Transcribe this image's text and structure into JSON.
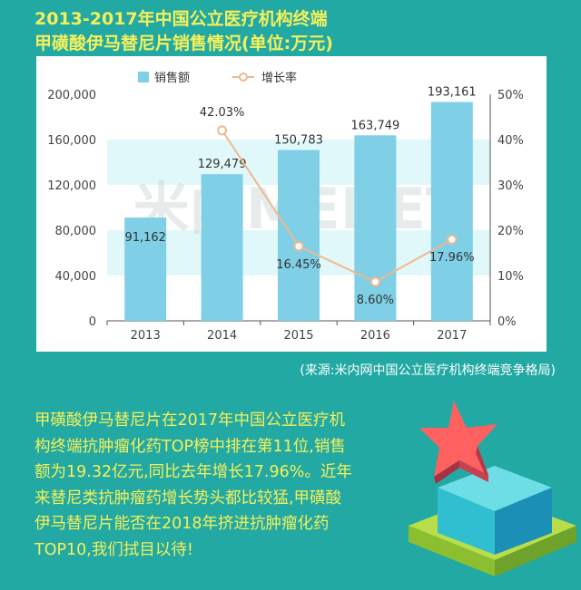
{
  "title": {
    "line1": "2013-2017年中国公立医疗机构终端",
    "line2": "甲磺酸伊马替尼片销售情况(单位:万元)"
  },
  "chart_data": {
    "type": "bar",
    "categories": [
      "2013",
      "2014",
      "2015",
      "2016",
      "2017"
    ],
    "series": [
      {
        "name": "销售额",
        "type": "bar",
        "values": [
          91162,
          129479,
          150783,
          163749,
          193161
        ],
        "labels": [
          "91,162",
          "129,479",
          "150,783",
          "163,749",
          "193,161"
        ],
        "color": "#7fd0e6"
      },
      {
        "name": "增长率",
        "type": "line",
        "axis": "right",
        "values": [
          null,
          42.03,
          16.45,
          8.6,
          17.96
        ],
        "labels": [
          "",
          "42.03%",
          "16.45%",
          "8.60%",
          "17.96%"
        ],
        "color": "#f0b890"
      }
    ],
    "ylim": [
      0,
      200000
    ],
    "yticks": [
      "0",
      "40,000",
      "80,000",
      "120,000",
      "160,000",
      "200,000"
    ],
    "y2lim": [
      0,
      50
    ],
    "y2ticks": [
      "0%",
      "10%",
      "20%",
      "30%",
      "40%",
      "50%"
    ],
    "legend_position": "top-left",
    "watermark": "米内MENET"
  },
  "source": "(来源:米内网中国公立医疗机构终端竞争格局)",
  "paragraph": [
    "甲磺酸伊马替尼片在2017年中国公立医疗机",
    "构终端抗肿瘤化药TOP榜中排在第11位,销售",
    "额为19.32亿元,同比去年增长17.96%。近年",
    "来替尼类抗肿瘤药增长势头都比较猛,甲磺酸",
    "伊马替尼片能否在2018年挤进抗肿瘤化药",
    "TOP10,我们拭目以待!"
  ],
  "colors": {
    "background": "#22a9a4",
    "title": "#f5f05a",
    "band": "#e1f8fa",
    "bar": "#7fd0e6",
    "line": "#f0b890"
  },
  "illustration": {
    "icon": "star-on-cube-icon"
  }
}
